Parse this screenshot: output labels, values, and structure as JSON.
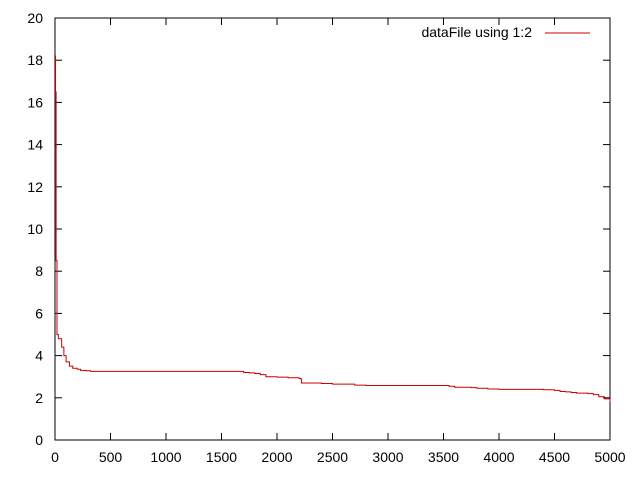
{
  "chart_data": {
    "type": "line",
    "title": "",
    "xlabel": "",
    "ylabel": "",
    "xlim": [
      0,
      5000
    ],
    "ylim": [
      0,
      20
    ],
    "xticks": [
      0,
      500,
      1000,
      1500,
      2000,
      2500,
      3000,
      3500,
      4000,
      4500,
      5000
    ],
    "yticks": [
      0,
      2,
      4,
      6,
      8,
      10,
      12,
      14,
      16,
      18,
      20
    ],
    "grid": false,
    "legend_position": "top-right",
    "series": [
      {
        "name": "dataFile using 1:2",
        "color": "#cc0000",
        "x": [
          1,
          5,
          10,
          18,
          30,
          40,
          60,
          80,
          100,
          130,
          160,
          200,
          230,
          280,
          320,
          400,
          500,
          700,
          1000,
          1300,
          1500,
          1600,
          1680,
          1700,
          1750,
          1800,
          1850,
          1900,
          2000,
          2100,
          2200,
          2210,
          2220,
          2300,
          2400,
          2500,
          2600,
          2700,
          2800,
          3000,
          3200,
          3400,
          3550,
          3600,
          3700,
          3750,
          3800,
          3900,
          4000,
          4200,
          4400,
          4450,
          4500,
          4550,
          4600,
          4650,
          4700,
          4800,
          4850,
          4900,
          4950,
          5000
        ],
        "y": [
          18.2,
          16.5,
          8.5,
          5.0,
          4.8,
          4.8,
          4.4,
          4.0,
          3.7,
          3.5,
          3.4,
          3.35,
          3.3,
          3.28,
          3.25,
          3.25,
          3.25,
          3.25,
          3.25,
          3.25,
          3.25,
          3.25,
          3.25,
          3.2,
          3.18,
          3.15,
          3.1,
          3.0,
          2.98,
          2.95,
          2.92,
          2.9,
          2.7,
          2.7,
          2.68,
          2.65,
          2.65,
          2.6,
          2.58,
          2.58,
          2.58,
          2.58,
          2.55,
          2.5,
          2.5,
          2.48,
          2.45,
          2.42,
          2.4,
          2.4,
          2.38,
          2.38,
          2.35,
          2.3,
          2.28,
          2.25,
          2.22,
          2.2,
          2.15,
          2.05,
          1.95,
          1.8
        ]
      }
    ]
  }
}
